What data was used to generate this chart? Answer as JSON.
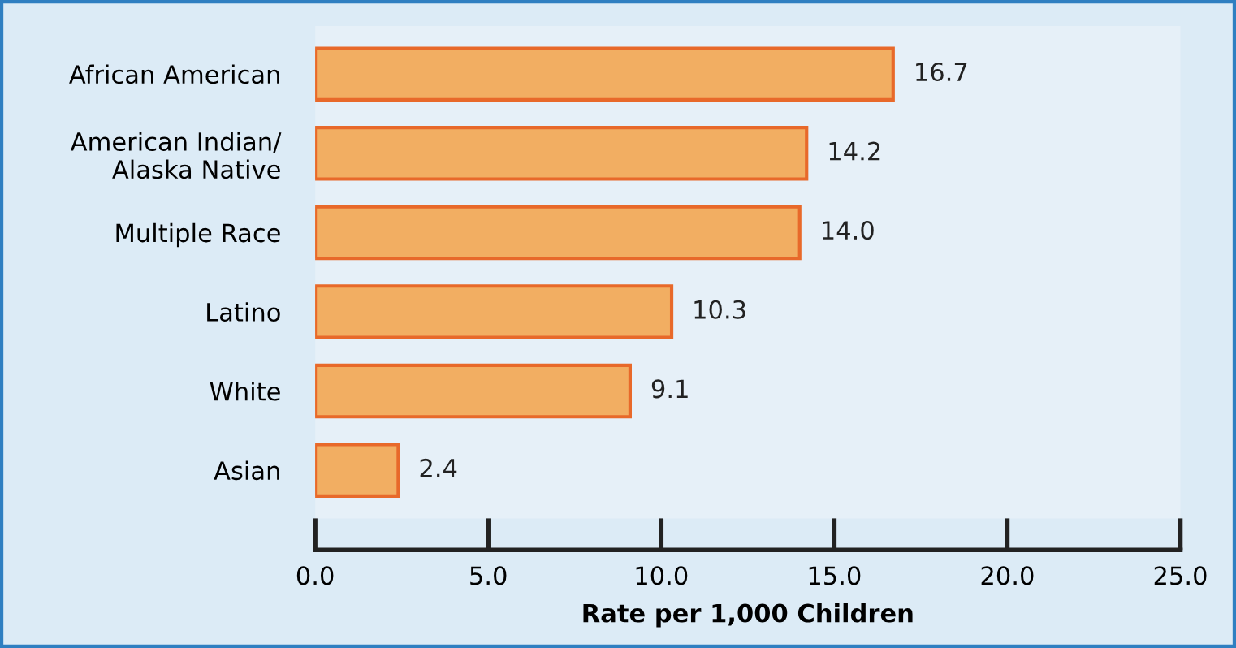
{
  "chart_data": {
    "type": "bar",
    "orientation": "horizontal",
    "xlabel": "Rate per 1,000 Children",
    "categories": [
      "African American",
      "American Indian/\nAlaska Native",
      "Multiple Race",
      "Latino",
      "White",
      "Asian"
    ],
    "values": [
      16.7,
      14.2,
      14.0,
      10.3,
      9.1,
      2.4
    ],
    "color": "#f2ae62",
    "xlim": [
      0,
      25
    ],
    "xticks": [
      {
        "value": 0,
        "label": "0.0"
      },
      {
        "value": 5,
        "label": "5.0"
      },
      {
        "value": 10,
        "label": "10.0"
      },
      {
        "value": 15,
        "label": "15.0"
      },
      {
        "value": 20,
        "label": "20.0"
      },
      {
        "value": 25,
        "label": "25.0"
      }
    ],
    "value_labels": [
      "16.7",
      "14.2",
      "14.0",
      "10.3",
      "9.1",
      "2.4"
    ],
    "grid": false,
    "legend": false
  }
}
